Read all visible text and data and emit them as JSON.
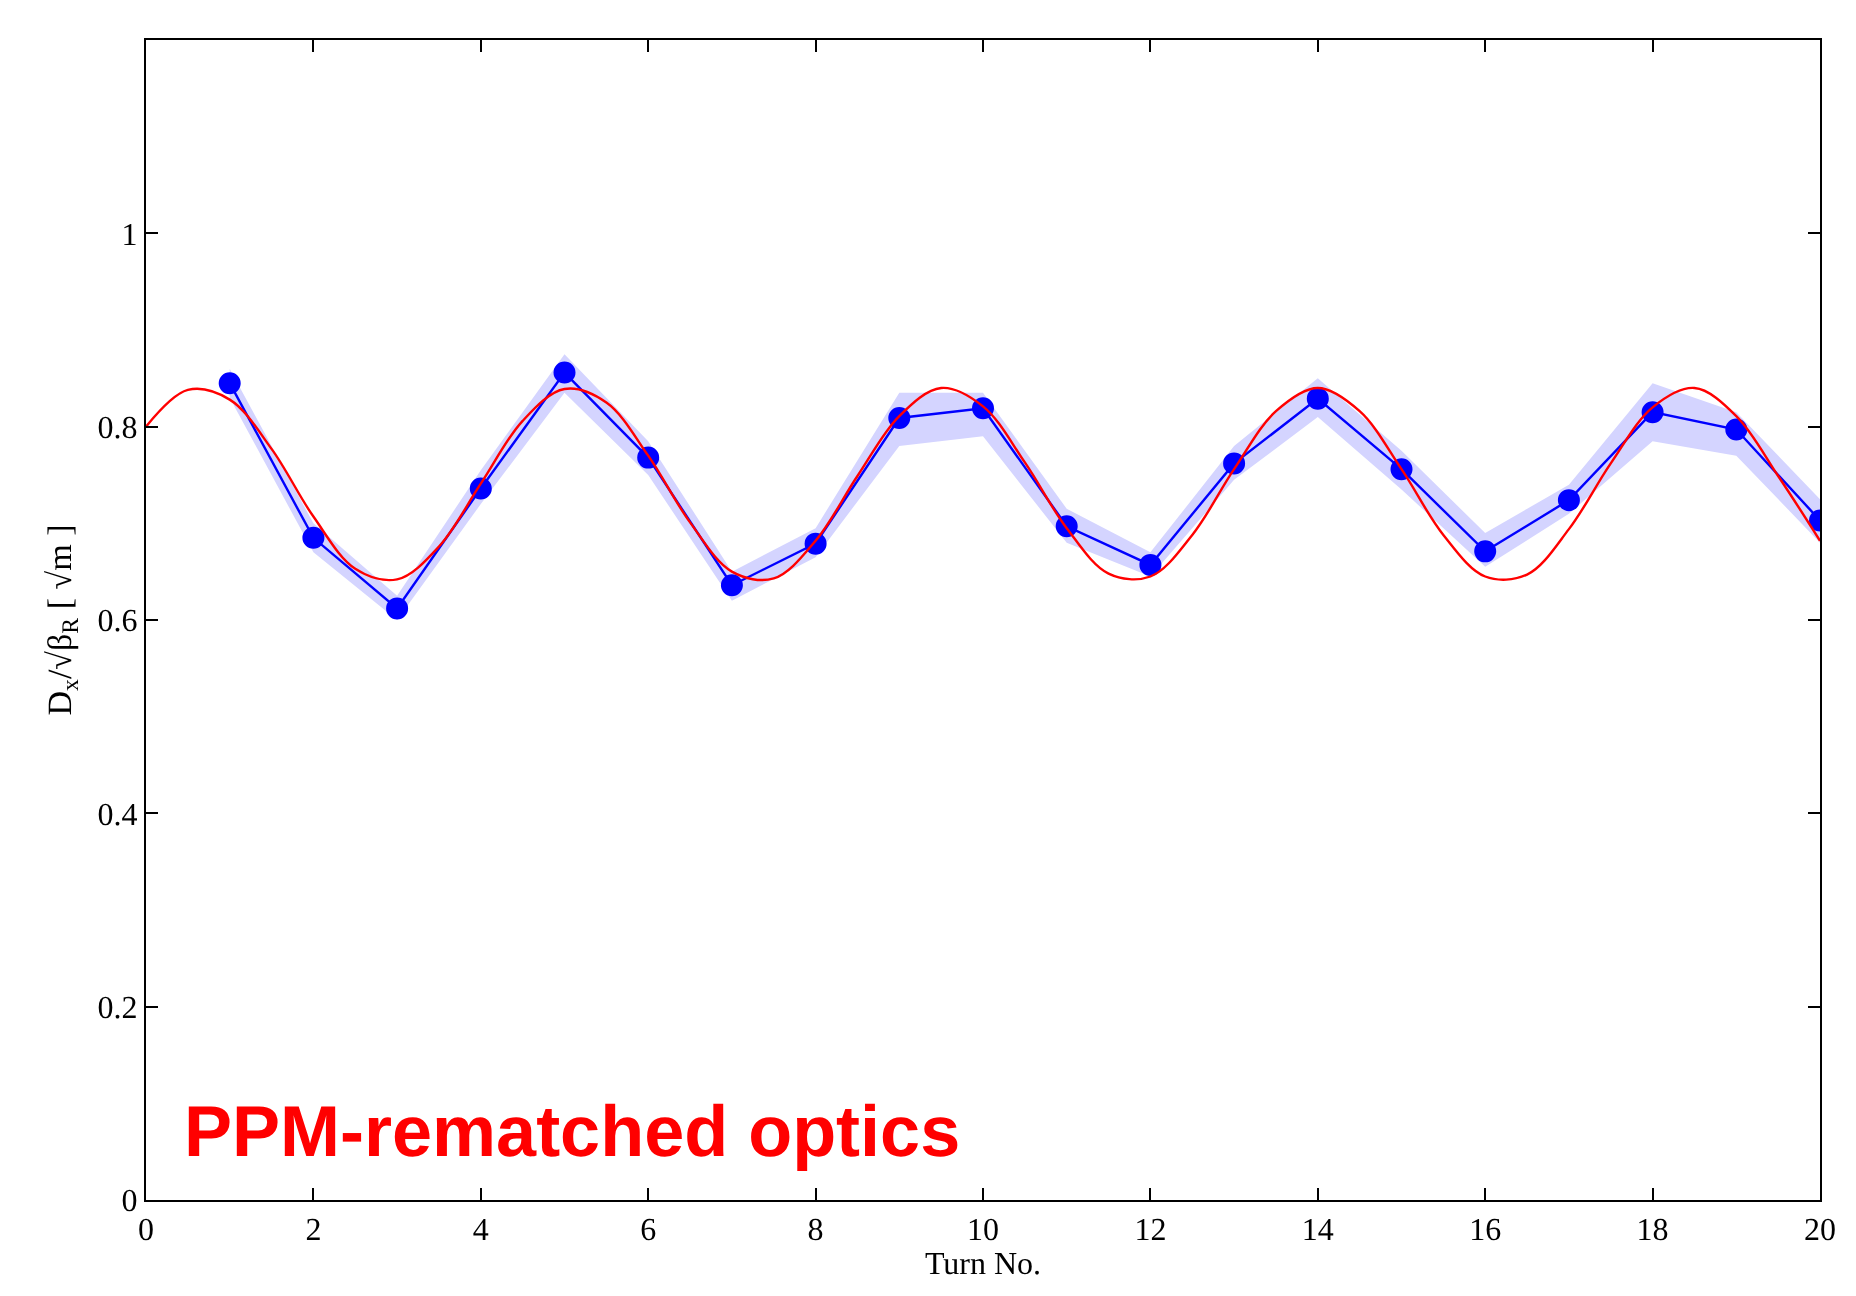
{
  "chart_data": {
    "type": "line",
    "xlabel": "Turn No.",
    "ylabel": "D$_{x}$/√β$_{R}$ [ √m ]",
    "xlim": [
      0,
      20
    ],
    "ylim": [
      0,
      1.2
    ],
    "xticks": [
      0,
      2,
      4,
      6,
      8,
      10,
      12,
      14,
      16,
      18,
      20
    ],
    "yticks": [
      0,
      0.2,
      0.4,
      0.6,
      0.8,
      1
    ],
    "grid": false,
    "marker": "circle",
    "series": [
      {
        "color": "#0000ff",
        "x": [
          1,
          2,
          3,
          4,
          5,
          6,
          7,
          8,
          9,
          10,
          11,
          12,
          13,
          14,
          15,
          16,
          17,
          18,
          19,
          20
        ],
        "values": [
          0.845,
          0.685,
          0.612,
          0.736,
          0.856,
          0.768,
          0.636,
          0.679,
          0.809,
          0.819,
          0.697,
          0.657,
          0.762,
          0.829,
          0.756,
          0.671,
          0.724,
          0.815,
          0.797,
          0.703
        ],
        "lower": [
          0.83,
          0.67,
          0.6,
          0.72,
          0.835,
          0.75,
          0.62,
          0.665,
          0.78,
          0.79,
          0.68,
          0.645,
          0.745,
          0.81,
          0.735,
          0.655,
          0.71,
          0.785,
          0.77,
          0.68
        ],
        "upper": [
          0.86,
          0.7,
          0.625,
          0.755,
          0.875,
          0.785,
          0.65,
          0.695,
          0.835,
          0.835,
          0.715,
          0.67,
          0.78,
          0.85,
          0.775,
          0.69,
          0.74,
          0.845,
          0.815,
          0.725
        ]
      },
      {
        "color": "#ff0000",
        "marker": "none",
        "x": [
          0,
          0.5,
          1,
          1.5,
          2,
          2.5,
          3,
          3.5,
          4,
          4.5,
          5,
          5.5,
          6,
          6.5,
          7,
          7.5,
          8,
          8.5,
          9,
          9.5,
          10,
          10.5,
          11,
          11.5,
          12,
          12.5,
          13,
          13.5,
          14,
          14.5,
          15,
          15.5,
          16,
          16.5,
          17,
          17.5,
          18,
          18.5,
          19,
          19.5,
          20
        ],
        "values": [
          0.8,
          0.838,
          0.828,
          0.777,
          0.707,
          0.653,
          0.642,
          0.676,
          0.741,
          0.806,
          0.839,
          0.825,
          0.77,
          0.701,
          0.65,
          0.643,
          0.682,
          0.749,
          0.811,
          0.84,
          0.821,
          0.763,
          0.695,
          0.648,
          0.645,
          0.688,
          0.756,
          0.816,
          0.84,
          0.816,
          0.756,
          0.688,
          0.645,
          0.647,
          0.694,
          0.762,
          0.82,
          0.84,
          0.811,
          0.749,
          0.682
        ]
      }
    ],
    "annotations": [
      "PPM-rematched optics"
    ]
  }
}
